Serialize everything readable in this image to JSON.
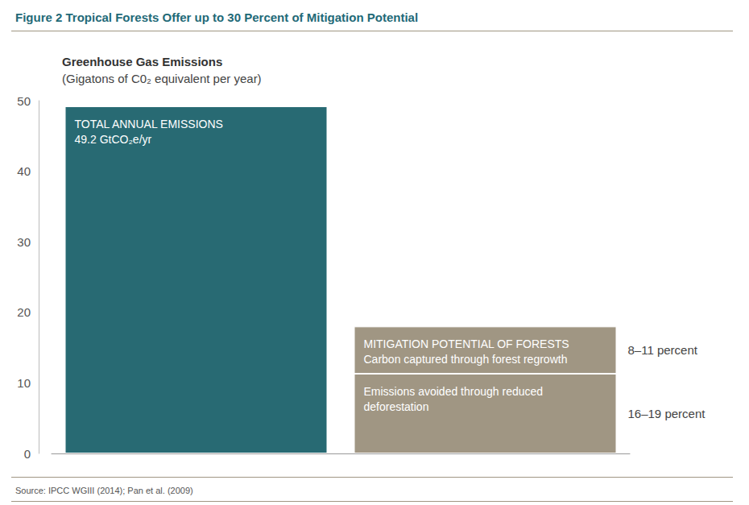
{
  "chart_data": {
    "type": "bar",
    "title": "Figure 2 Tropical Forests Offer up to 30 Percent of Mitigation Potential",
    "y_label": "Greenhouse Gas Emissions",
    "y_sublabel": "(Gigatons of C0₂ equivalent per year)",
    "source": "Source: IPCC WGIII (2014); Pan et al. (2009)",
    "categories": [
      null,
      null
    ],
    "series": [
      {
        "name": "TOTAL ANNUAL EMISSIONS",
        "color": "#286a73",
        "values": [
          49.2,
          null
        ],
        "value_labels": [
          "49.2 GtCO₂e/yr",
          null
        ]
      },
      {
        "name": "Emissions avoided through reduced deforestation",
        "color": "#a09683",
        "values": [
          null,
          11.3
        ],
        "annotation": "16–19 percent"
      },
      {
        "name": "Carbon captured through forest regrowth",
        "color": "#a09683",
        "values": [
          null,
          6.7
        ],
        "annotation": "8–11 percent",
        "group_label": "MITIGATION POTENTIAL OF FORESTS"
      }
    ],
    "stacked": true,
    "data_labels": true,
    "ylim": [
      0,
      50
    ],
    "yticks": [
      0,
      10,
      20,
      30,
      40,
      50
    ],
    "grid": false
  }
}
